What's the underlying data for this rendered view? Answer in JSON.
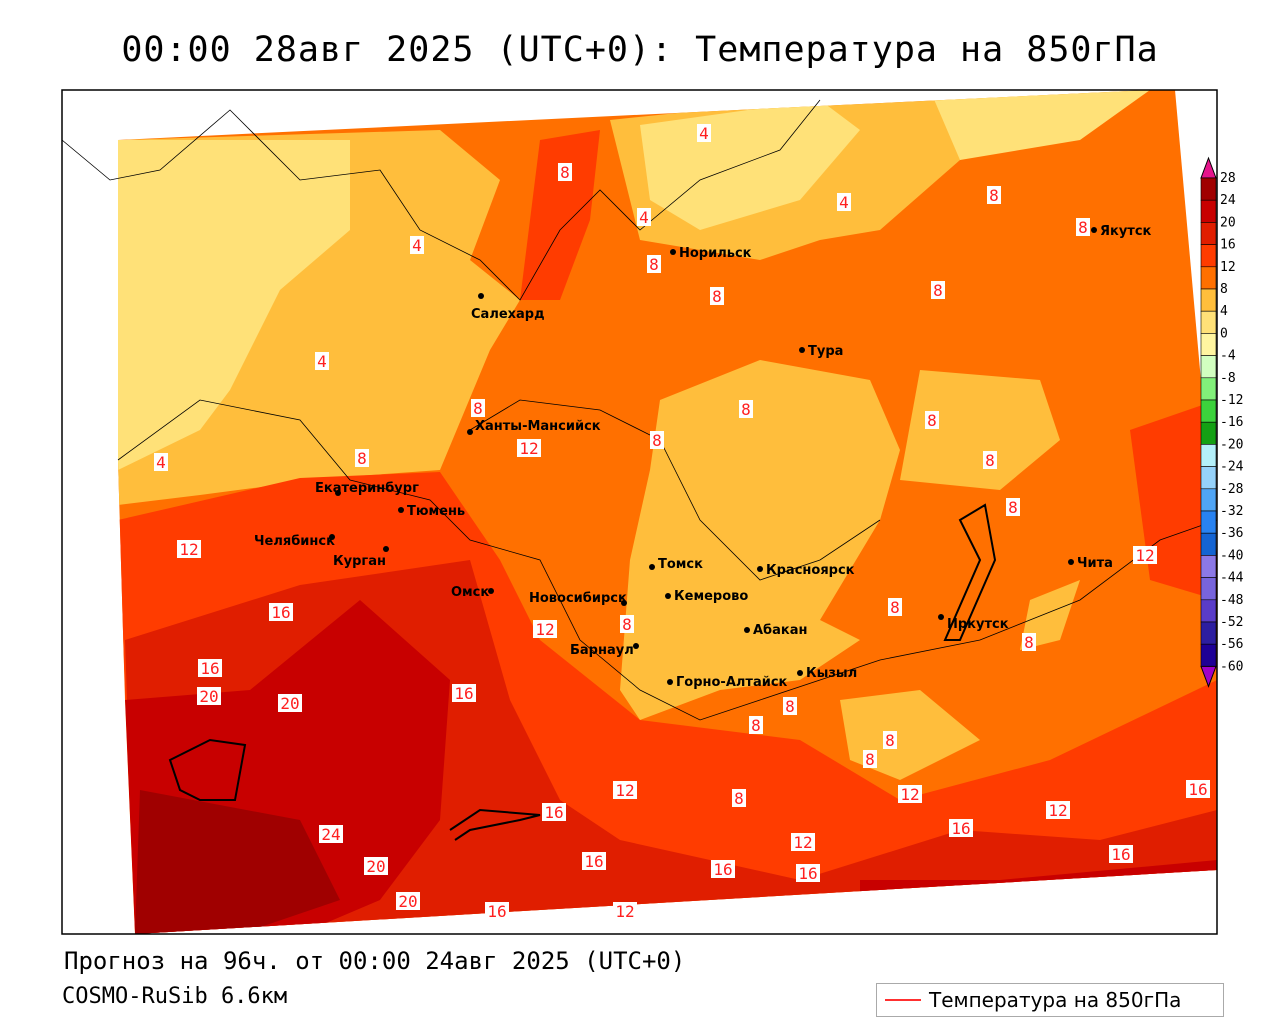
{
  "title": "00:00 28авг 2025 (UTC+0): Температура на 850гПа",
  "footer": {
    "forecast": "Прогноз на 96ч. от 00:00 24авг 2025 (UTC+0)",
    "model": "COSMO-RuSib 6.6км"
  },
  "legend": {
    "label": "Температура на 850гПа",
    "line_color": "#ff3030"
  },
  "colorbar": {
    "ticks": [
      "28",
      "24",
      "20",
      "16",
      "12",
      "8",
      "4",
      "0",
      "-4",
      "-8",
      "-12",
      "-16",
      "-20",
      "-24",
      "-28",
      "-32",
      "-36",
      "-40",
      "-44",
      "-48",
      "-52",
      "-56",
      "-60"
    ],
    "colors": [
      "#a00000",
      "#c80000",
      "#e01e00",
      "#ff3c00",
      "#ff7000",
      "#ffbe3c",
      "#ffe178",
      "#fff5a0",
      "#d2ffc0",
      "#82f07a",
      "#3cd23c",
      "#14a014",
      "#b4f0fa",
      "#96d2fa",
      "#50a5f5",
      "#2882f0",
      "#1464d2",
      "#8c78e6",
      "#7864dc",
      "#5a3cc8",
      "#2d1ea0",
      "#1e0096"
    ],
    "over_color": "#e6148c",
    "under_color": "#a000c8"
  },
  "cities": [
    "Якутск",
    "Норильск",
    "Салехард",
    "Тура",
    "Ханты-Мансийск",
    "Екатеринбург",
    "Тюмень",
    "Челябинск",
    "Курган",
    "Омск",
    "Новосибирск",
    "Томск",
    "Красноярск",
    "Кемерово",
    "Абакан",
    "Барнаул",
    "Горно-Алтайск",
    "Кызыл",
    "Иркутск",
    "Чита"
  ],
  "contour_labels": [
    "4",
    "4",
    "4",
    "4",
    "4",
    "4",
    "8",
    "8",
    "8",
    "8",
    "8",
    "8",
    "8",
    "8",
    "8",
    "8",
    "8",
    "8",
    "8",
    "8",
    "8",
    "8",
    "8",
    "8",
    "8",
    "8",
    "8",
    "12",
    "12",
    "12",
    "12",
    "12",
    "12",
    "12",
    "12",
    "12",
    "16",
    "16",
    "16",
    "16",
    "16",
    "16",
    "16",
    "16",
    "16",
    "16",
    "16",
    "20",
    "20",
    "20",
    "20",
    "24"
  ]
}
